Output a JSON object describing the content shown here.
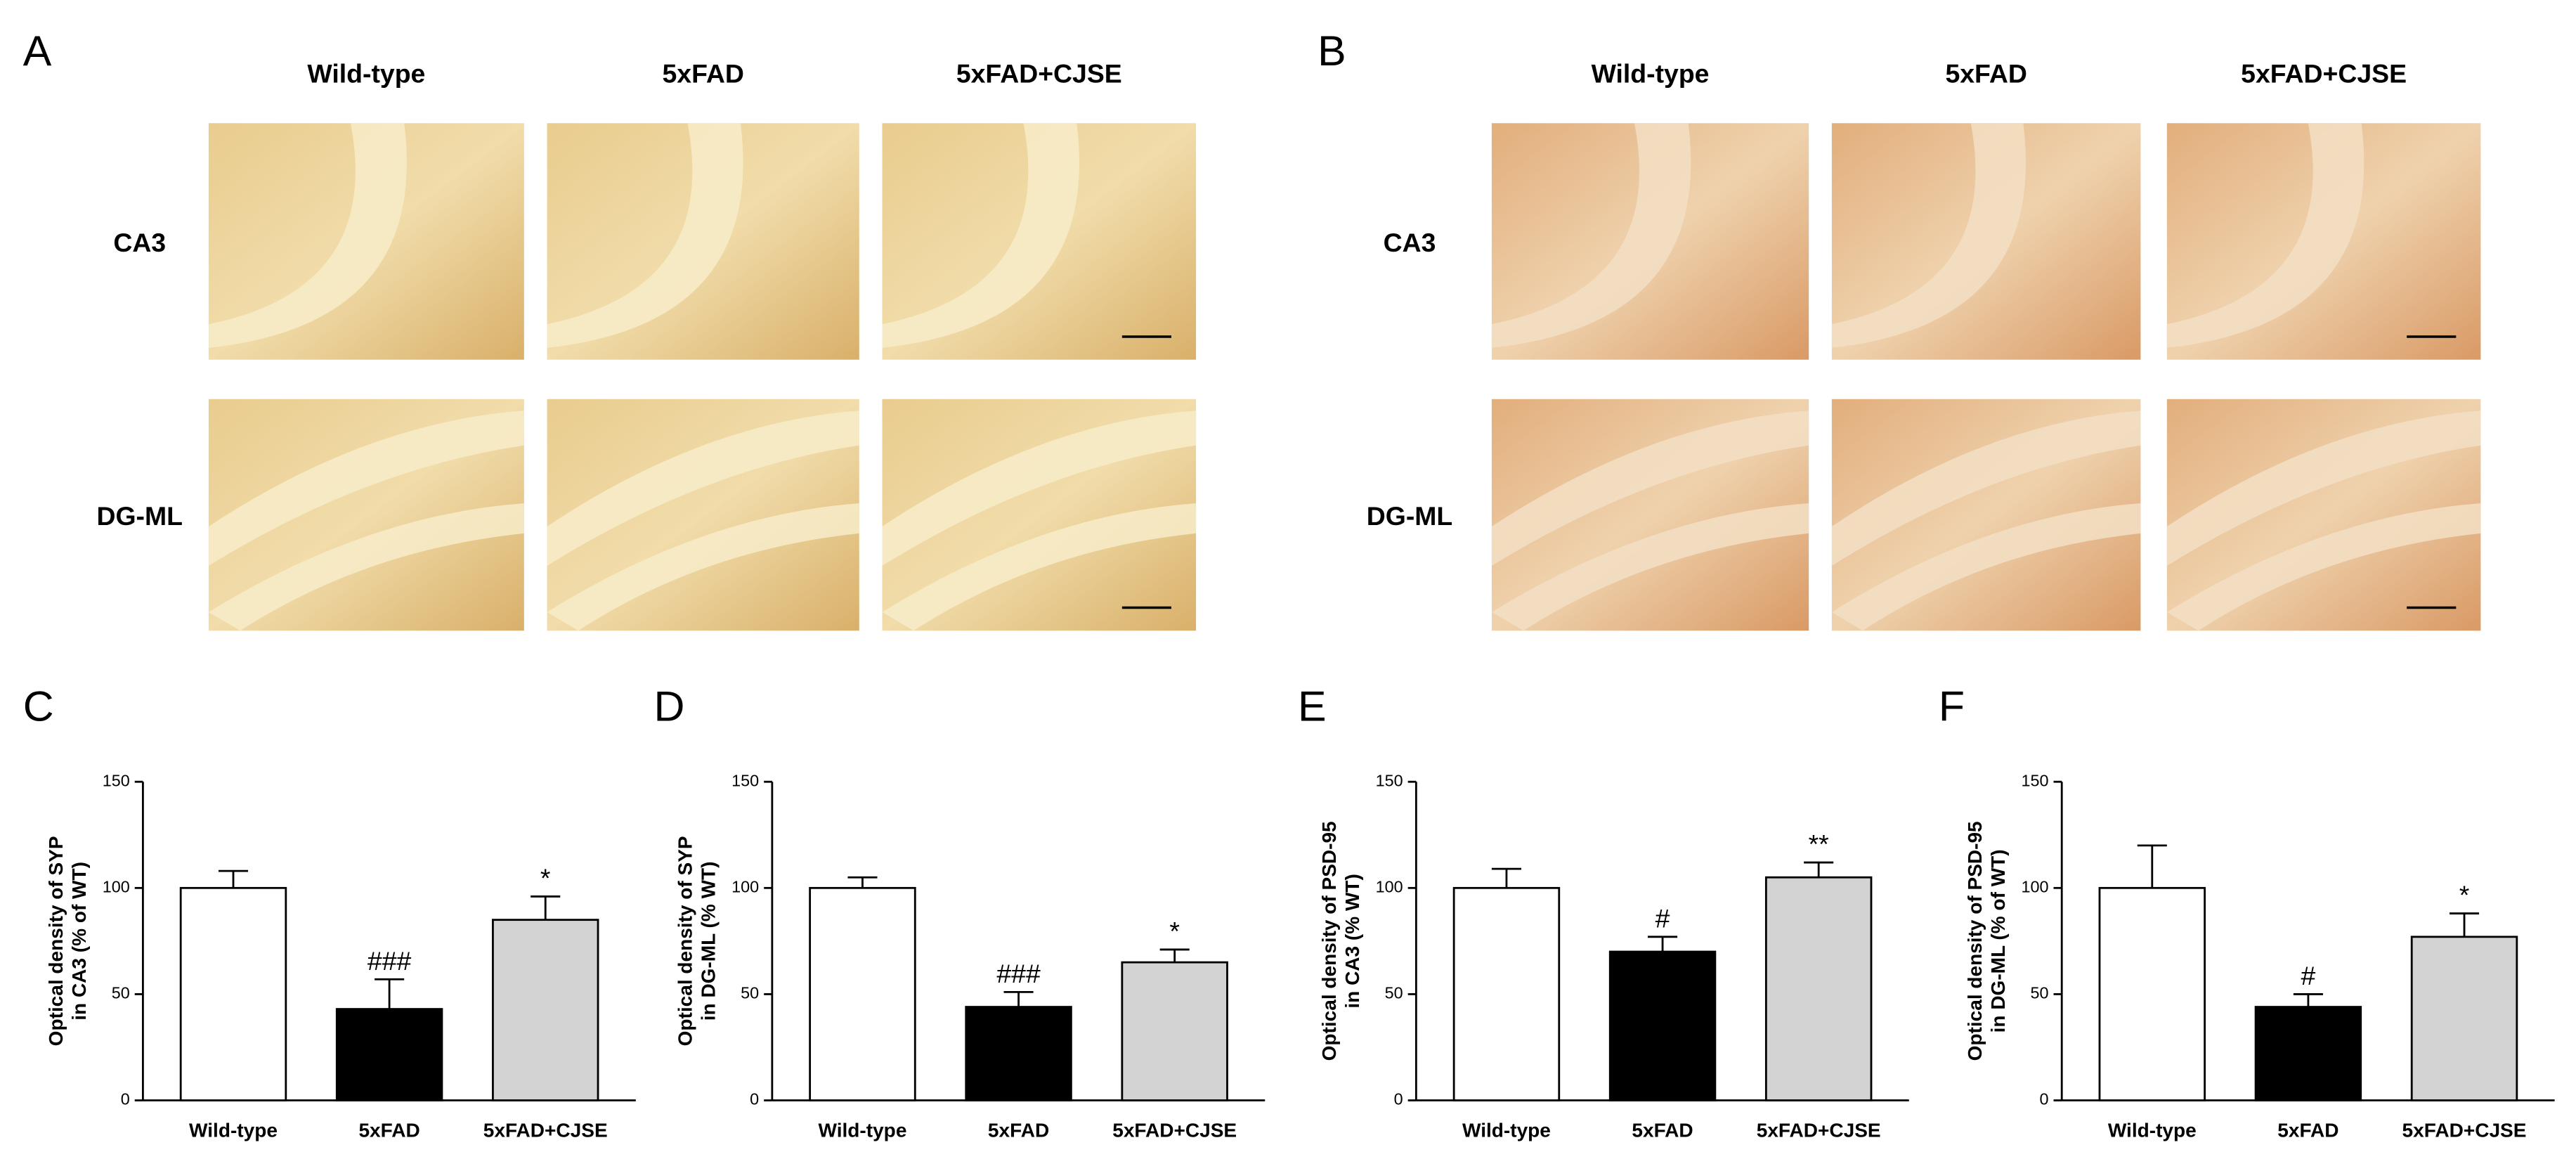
{
  "figure": {
    "panels": [
      {
        "label": "A",
        "columns": [
          "Wild-type",
          "5xFAD",
          "5xFAD+CJSE"
        ],
        "rows": [
          "CA3",
          "DG-ML"
        ]
      },
      {
        "label": "B",
        "columns": [
          "Wild-type",
          "5xFAD",
          "5xFAD+CJSE"
        ],
        "rows": [
          "CA3",
          "DG-ML"
        ]
      }
    ]
  },
  "chart_data": [
    {
      "type": "bar",
      "panel": "C",
      "ylabel": [
        "Optical density of SYP",
        "in CA3 (% of WT)"
      ],
      "categories": [
        "Wild-type",
        "5xFAD",
        "5xFAD+CJSE"
      ],
      "values": [
        100,
        43,
        85
      ],
      "errors": [
        8,
        14,
        11
      ],
      "annotations": [
        null,
        "###",
        "*"
      ],
      "colors": [
        "#ffffff",
        "#000000",
        "#d3d3d3"
      ],
      "ylim": [
        0,
        150
      ],
      "yticks": [
        0,
        50,
        100,
        150
      ]
    },
    {
      "type": "bar",
      "panel": "D",
      "ylabel": [
        "Optical density of SYP",
        "in DG-ML (% WT)"
      ],
      "categories": [
        "Wild-type",
        "5xFAD",
        "5xFAD+CJSE"
      ],
      "values": [
        100,
        44,
        65
      ],
      "errors": [
        5,
        7,
        6
      ],
      "annotations": [
        null,
        "###",
        "*"
      ],
      "colors": [
        "#ffffff",
        "#000000",
        "#d3d3d3"
      ],
      "ylim": [
        0,
        150
      ],
      "yticks": [
        0,
        50,
        100,
        150
      ]
    },
    {
      "type": "bar",
      "panel": "E",
      "ylabel": [
        "Optical density of PSD-95",
        "in CA3 (% WT)"
      ],
      "categories": [
        "Wild-type",
        "5xFAD",
        "5xFAD+CJSE"
      ],
      "values": [
        100,
        70,
        105
      ],
      "errors": [
        9,
        7,
        7
      ],
      "annotations": [
        null,
        "#",
        "**"
      ],
      "colors": [
        "#ffffff",
        "#000000",
        "#d3d3d3"
      ],
      "ylim": [
        0,
        150
      ],
      "yticks": [
        0,
        50,
        100,
        150
      ]
    },
    {
      "type": "bar",
      "panel": "F",
      "ylabel": [
        "Optical density of PSD-95",
        "in DG-ML (% of WT)"
      ],
      "categories": [
        "Wild-type",
        "5xFAD",
        "5xFAD+CJSE"
      ],
      "values": [
        100,
        44,
        77
      ],
      "errors": [
        20,
        6,
        11
      ],
      "annotations": [
        null,
        "#",
        "*"
      ],
      "colors": [
        "#ffffff",
        "#000000",
        "#d3d3d3"
      ],
      "ylim": [
        0,
        150
      ],
      "yticks": [
        0,
        50,
        100,
        150
      ]
    }
  ]
}
